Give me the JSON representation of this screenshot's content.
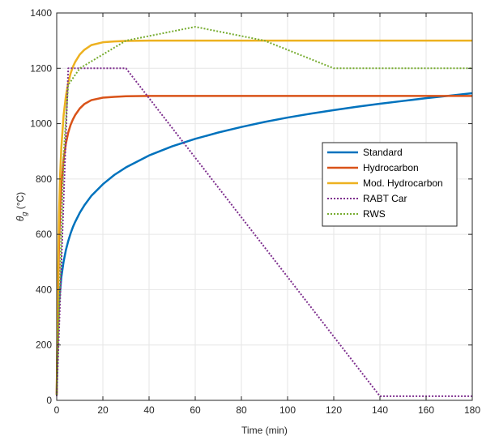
{
  "chart_data": {
    "type": "line",
    "title": "",
    "xlabel": "Time (min)",
    "ylabel_symbol": "θ",
    "ylabel_subscript": "g",
    "ylabel_unit": " (°C)",
    "xlim": [
      0,
      180
    ],
    "ylim": [
      0,
      1400
    ],
    "xticks": [
      0,
      20,
      40,
      60,
      80,
      100,
      120,
      140,
      160,
      180
    ],
    "yticks": [
      0,
      200,
      400,
      600,
      800,
      1000,
      1200,
      1400
    ],
    "grid": true,
    "legend_position": "center-right",
    "series": [
      {
        "name": "Standard",
        "color": "#0072BD",
        "style": "solid",
        "points": [
          [
            0,
            20
          ],
          [
            0.5,
            276
          ],
          [
            1,
            349
          ],
          [
            2,
            445
          ],
          [
            3,
            502
          ],
          [
            4,
            544
          ],
          [
            5,
            576
          ],
          [
            6,
            603
          ],
          [
            7,
            626
          ],
          [
            8,
            645
          ],
          [
            10,
            678
          ],
          [
            12,
            705
          ],
          [
            15,
            739
          ],
          [
            20,
            781
          ],
          [
            25,
            815
          ],
          [
            30,
            842
          ],
          [
            40,
            885
          ],
          [
            50,
            918
          ],
          [
            60,
            945
          ],
          [
            70,
            968
          ],
          [
            80,
            988
          ],
          [
            90,
            1006
          ],
          [
            100,
            1022
          ],
          [
            110,
            1036
          ],
          [
            120,
            1049
          ],
          [
            130,
            1061
          ],
          [
            140,
            1072
          ],
          [
            150,
            1082
          ],
          [
            160,
            1092
          ],
          [
            170,
            1101
          ],
          [
            180,
            1110
          ]
        ]
      },
      {
        "name": "Hydrocarbon",
        "color": "#D95319",
        "style": "solid",
        "points": [
          [
            0,
            20
          ],
          [
            0.5,
            359
          ],
          [
            1,
            566
          ],
          [
            1.5,
            693
          ],
          [
            2,
            773
          ],
          [
            3,
            871
          ],
          [
            4,
            929
          ],
          [
            5,
            968
          ],
          [
            6,
            995
          ],
          [
            7,
            1015
          ],
          [
            8,
            1031
          ],
          [
            10,
            1055
          ],
          [
            12,
            1071
          ],
          [
            15,
            1085
          ],
          [
            20,
            1094
          ],
          [
            25,
            1097
          ],
          [
            30,
            1099
          ],
          [
            40,
            1100
          ],
          [
            60,
            1100
          ],
          [
            90,
            1100
          ],
          [
            120,
            1100
          ],
          [
            150,
            1100
          ],
          [
            180,
            1100
          ]
        ]
      },
      {
        "name": "Mod. Hydrocarbon",
        "color": "#EDB120",
        "style": "solid",
        "points": [
          [
            0,
            20
          ],
          [
            0.5,
            423
          ],
          [
            1,
            668
          ],
          [
            1.5,
            818
          ],
          [
            2,
            913
          ],
          [
            3,
            1031
          ],
          [
            4,
            1101
          ],
          [
            5,
            1148
          ],
          [
            6,
            1181
          ],
          [
            7,
            1205
          ],
          [
            8,
            1223
          ],
          [
            10,
            1250
          ],
          [
            12,
            1267
          ],
          [
            15,
            1284
          ],
          [
            20,
            1294
          ],
          [
            25,
            1297
          ],
          [
            30,
            1299
          ],
          [
            40,
            1300
          ],
          [
            60,
            1300
          ],
          [
            90,
            1300
          ],
          [
            120,
            1300
          ],
          [
            150,
            1300
          ],
          [
            180,
            1300
          ]
        ]
      },
      {
        "name": "RABT Car",
        "color": "#7E2F8E",
        "style": "dotted",
        "points": [
          [
            0,
            15
          ],
          [
            5,
            1200
          ],
          [
            30,
            1200
          ],
          [
            140,
            15
          ],
          [
            180,
            15
          ]
        ]
      },
      {
        "name": "RWS",
        "color": "#77AC30",
        "style": "dotted",
        "points": [
          [
            0,
            20
          ],
          [
            3,
            890
          ],
          [
            5,
            1140
          ],
          [
            10,
            1200
          ],
          [
            30,
            1300
          ],
          [
            60,
            1350
          ],
          [
            90,
            1300
          ],
          [
            120,
            1200
          ],
          [
            180,
            1200
          ]
        ]
      }
    ]
  }
}
